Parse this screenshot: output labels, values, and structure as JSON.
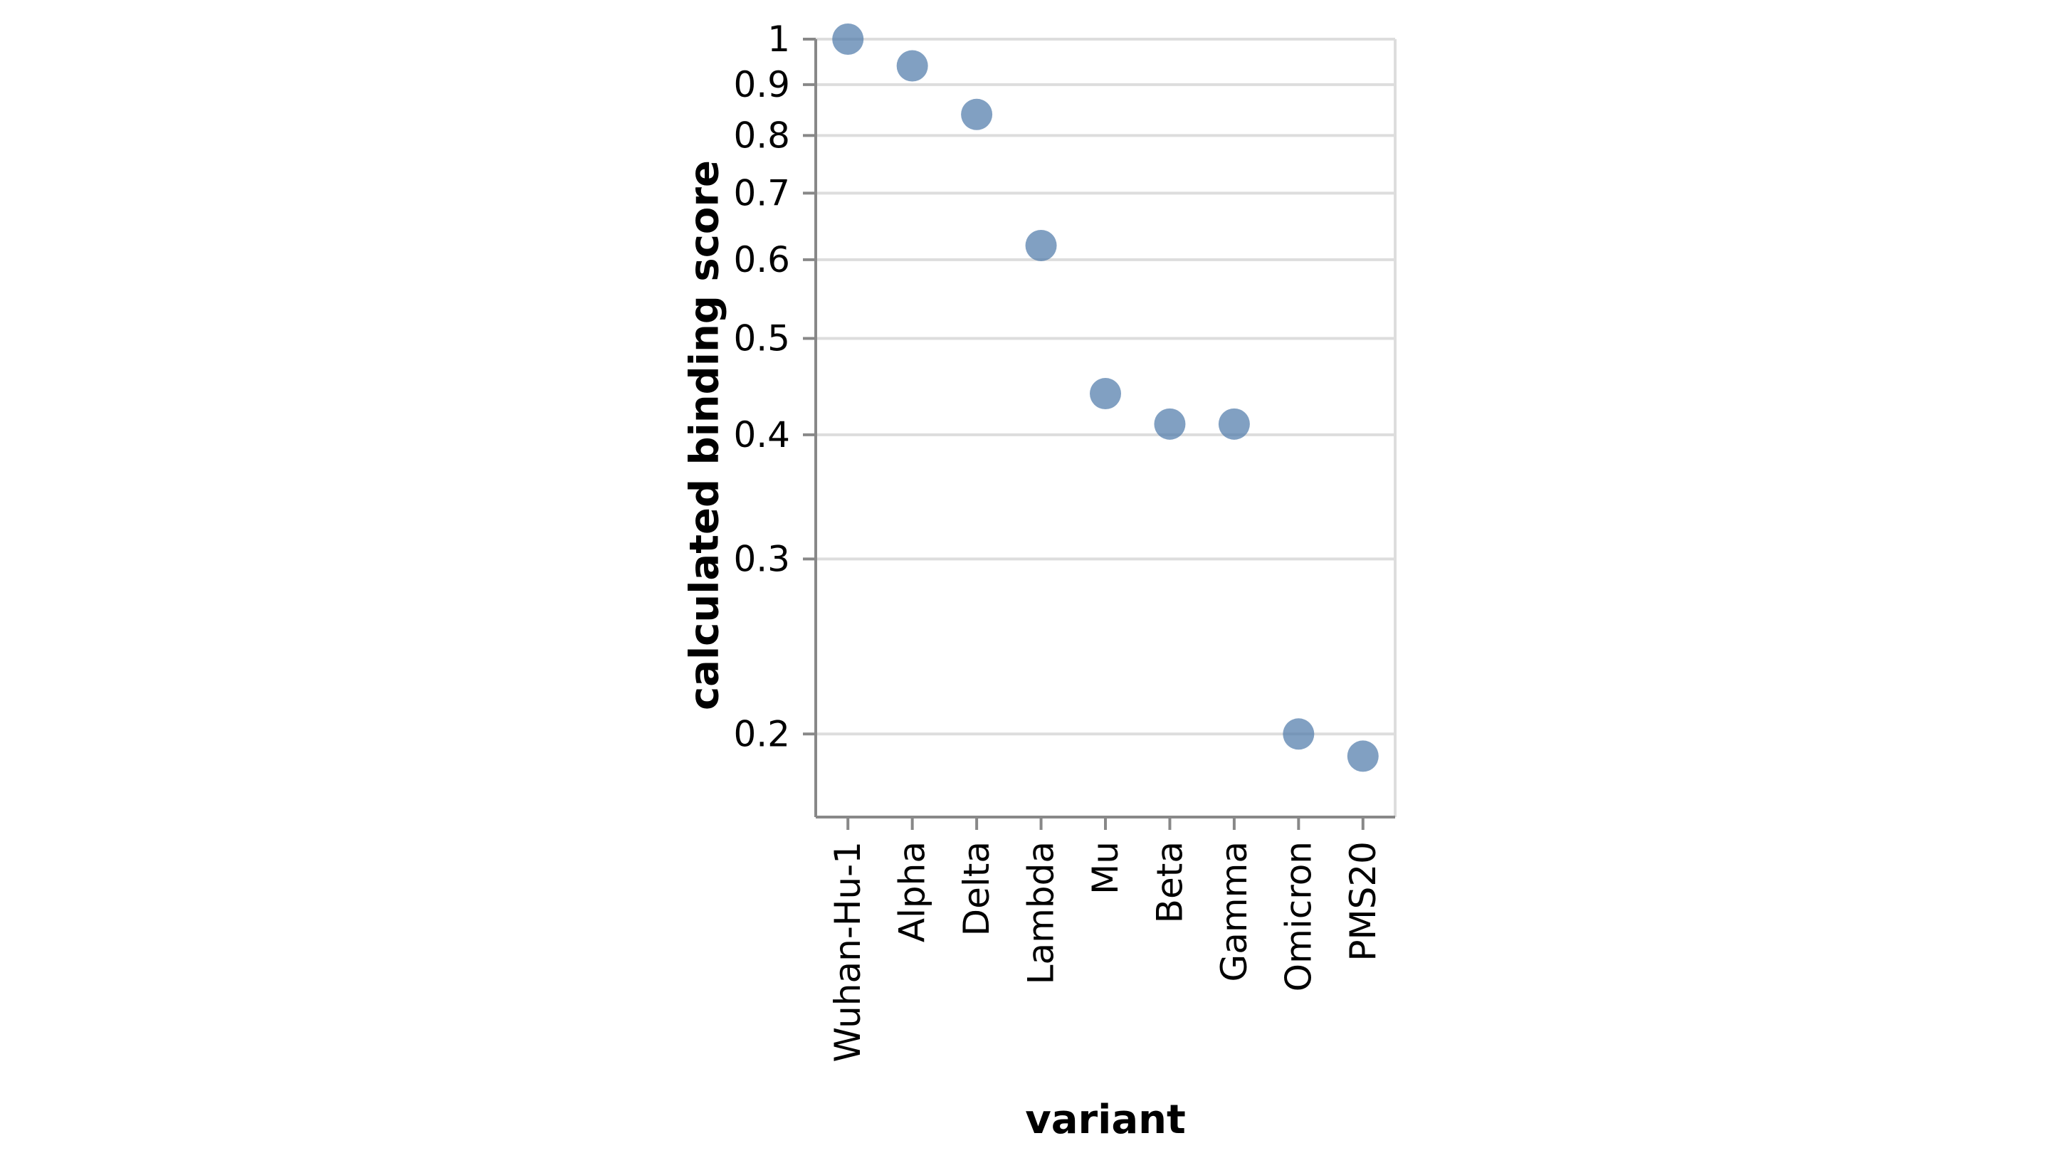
{
  "chart_data": {
    "type": "scatter",
    "title": "",
    "xlabel": "variant",
    "ylabel": "calculated binding score",
    "y_scale": "log",
    "ylim": [
      0.165,
      1.0
    ],
    "grid": true,
    "categories": [
      "Wuhan-Hu-1",
      "Alpha",
      "Delta",
      "Lambda",
      "Mu",
      "Beta",
      "Gamma",
      "Omicron",
      "PMS20"
    ],
    "values": [
      1.0,
      0.94,
      0.84,
      0.62,
      0.44,
      0.41,
      0.41,
      0.2,
      0.19
    ],
    "y_ticks": [
      {
        "value": 1.0,
        "label": "1"
      },
      {
        "value": 0.9,
        "label": "0.9"
      },
      {
        "value": 0.8,
        "label": "0.8"
      },
      {
        "value": 0.7,
        "label": "0.7"
      },
      {
        "value": 0.6,
        "label": "0.6"
      },
      {
        "value": 0.5,
        "label": "0.5"
      },
      {
        "value": 0.4,
        "label": "0.4"
      },
      {
        "value": 0.3,
        "label": "0.3"
      },
      {
        "value": 0.2,
        "label": "0.2"
      }
    ],
    "colors": {
      "point": "#4c78a8",
      "grid": "#dddddd",
      "axis": "#888888",
      "text": "#000000"
    }
  }
}
